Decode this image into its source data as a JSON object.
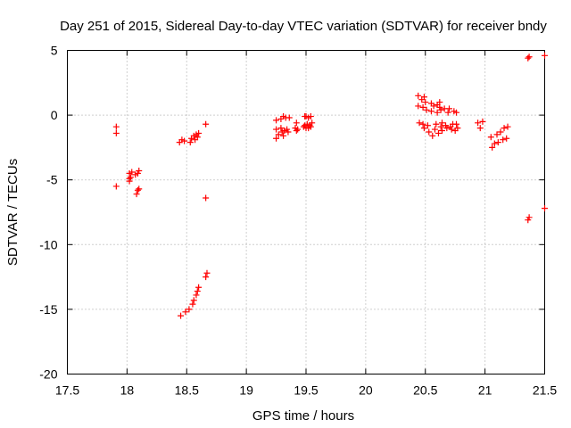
{
  "chart_data": {
    "type": "scatter",
    "title": "Day 251 of 2015, Sidereal Day-to-day VTEC variation (SDTVAR) for receiver bndy",
    "xlabel": "GPS time / hours",
    "ylabel": "SDTVAR / TECUs",
    "xlim": [
      17.5,
      21.5
    ],
    "ylim": [
      -20,
      5
    ],
    "xticks": [
      "17.5",
      "18",
      "18.5",
      "19",
      "19.5",
      "20",
      "20.5",
      "21",
      "21.5"
    ],
    "yticks": [
      "5",
      "0",
      "-5",
      "-10",
      "-15",
      "-20"
    ],
    "grid": true,
    "marker": "plus",
    "color": "#ff0000",
    "series": [
      {
        "name": "SDTVAR",
        "points": [
          [
            17.91,
            -0.9
          ],
          [
            17.91,
            -1.4
          ],
          [
            17.91,
            -5.5
          ],
          [
            18.02,
            -4.5
          ],
          [
            18.02,
            -4.9
          ],
          [
            18.02,
            -5.1
          ],
          [
            18.03,
            -4.8
          ],
          [
            18.04,
            -4.4
          ],
          [
            18.07,
            -4.6
          ],
          [
            18.08,
            -6.1
          ],
          [
            18.09,
            -5.8
          ],
          [
            18.09,
            -4.5
          ],
          [
            18.1,
            -5.7
          ],
          [
            18.1,
            -4.3
          ],
          [
            18.44,
            -2.1
          ],
          [
            18.45,
            -15.5
          ],
          [
            18.46,
            -1.9
          ],
          [
            18.48,
            -2.0
          ],
          [
            18.49,
            -15.2
          ],
          [
            18.52,
            -15.0
          ],
          [
            18.53,
            -2.1
          ],
          [
            18.54,
            -1.8
          ],
          [
            18.55,
            -14.6
          ],
          [
            18.56,
            -1.6
          ],
          [
            18.56,
            -14.3
          ],
          [
            18.57,
            -1.9
          ],
          [
            18.58,
            -1.5
          ],
          [
            18.58,
            -13.9
          ],
          [
            18.59,
            -1.7
          ],
          [
            18.59,
            -13.6
          ],
          [
            18.6,
            -1.4
          ],
          [
            18.6,
            -13.3
          ],
          [
            18.66,
            -0.7
          ],
          [
            18.66,
            -12.5
          ],
          [
            18.66,
            -6.4
          ],
          [
            18.67,
            -12.2
          ],
          [
            19.25,
            -0.4
          ],
          [
            19.25,
            -1.1
          ],
          [
            19.25,
            -1.8
          ],
          [
            19.27,
            -1.5
          ],
          [
            19.29,
            -0.3
          ],
          [
            19.29,
            -1.0
          ],
          [
            19.3,
            -1.3
          ],
          [
            19.31,
            -0.1
          ],
          [
            19.31,
            -1.6
          ],
          [
            19.32,
            -1.2
          ],
          [
            19.33,
            -0.2
          ],
          [
            19.34,
            -1.1
          ],
          [
            19.35,
            -1.3
          ],
          [
            19.36,
            -0.2
          ],
          [
            19.41,
            -1.0
          ],
          [
            19.42,
            -0.6
          ],
          [
            19.42,
            -1.2
          ],
          [
            19.43,
            -1.1
          ],
          [
            19.48,
            -0.9
          ],
          [
            19.49,
            -0.1
          ],
          [
            19.49,
            -0.8
          ],
          [
            19.5,
            -1.0
          ],
          [
            19.5,
            -0.1
          ],
          [
            19.51,
            -0.7
          ],
          [
            19.52,
            -1.0
          ],
          [
            19.52,
            -0.2
          ],
          [
            19.53,
            -0.8
          ],
          [
            19.54,
            -0.9
          ],
          [
            19.54,
            -0.1
          ],
          [
            19.55,
            -0.6
          ],
          [
            20.44,
            1.5
          ],
          [
            20.44,
            0.7
          ],
          [
            20.45,
            -0.6
          ],
          [
            20.47,
            1.2
          ],
          [
            20.48,
            0.6
          ],
          [
            20.48,
            -0.7
          ],
          [
            20.49,
            1.4
          ],
          [
            20.49,
            -1.0
          ],
          [
            20.5,
            1.0
          ],
          [
            20.51,
            0.4
          ],
          [
            20.52,
            -0.8
          ],
          [
            20.53,
            -1.3
          ],
          [
            20.55,
            0.9
          ],
          [
            20.55,
            0.3
          ],
          [
            20.56,
            -1.6
          ],
          [
            20.57,
            0.7
          ],
          [
            20.58,
            -1.1
          ],
          [
            20.59,
            -0.7
          ],
          [
            20.6,
            0.8
          ],
          [
            20.6,
            0.2
          ],
          [
            20.61,
            -1.4
          ],
          [
            20.62,
            1.0
          ],
          [
            20.62,
            0.6
          ],
          [
            20.63,
            0.4
          ],
          [
            20.63,
            -0.9
          ],
          [
            20.64,
            -0.6
          ],
          [
            20.64,
            -1.2
          ],
          [
            20.66,
            0.5
          ],
          [
            20.67,
            -0.8
          ],
          [
            20.68,
            -1.0
          ],
          [
            20.69,
            0.2
          ],
          [
            20.7,
            0.5
          ],
          [
            20.71,
            -0.9
          ],
          [
            20.72,
            -1.1
          ],
          [
            20.73,
            -0.7
          ],
          [
            20.74,
            0.3
          ],
          [
            20.75,
            -1.2
          ],
          [
            20.76,
            0.2
          ],
          [
            20.76,
            -0.7
          ],
          [
            20.77,
            -1.0
          ],
          [
            20.94,
            -0.6
          ],
          [
            20.96,
            -1.0
          ],
          [
            20.98,
            -0.5
          ],
          [
            21.05,
            -1.7
          ],
          [
            21.06,
            -2.5
          ],
          [
            21.08,
            -2.2
          ],
          [
            21.1,
            -1.5
          ],
          [
            21.11,
            -2.1
          ],
          [
            21.13,
            -1.3
          ],
          [
            21.15,
            -1.9
          ],
          [
            21.16,
            -1.0
          ],
          [
            21.18,
            -1.8
          ],
          [
            21.19,
            -0.9
          ],
          [
            21.36,
            4.4
          ],
          [
            21.37,
            4.5
          ],
          [
            21.36,
            -8.1
          ],
          [
            21.37,
            -7.9
          ],
          [
            21.5,
            4.6
          ],
          [
            21.5,
            -7.2
          ]
        ]
      }
    ]
  }
}
